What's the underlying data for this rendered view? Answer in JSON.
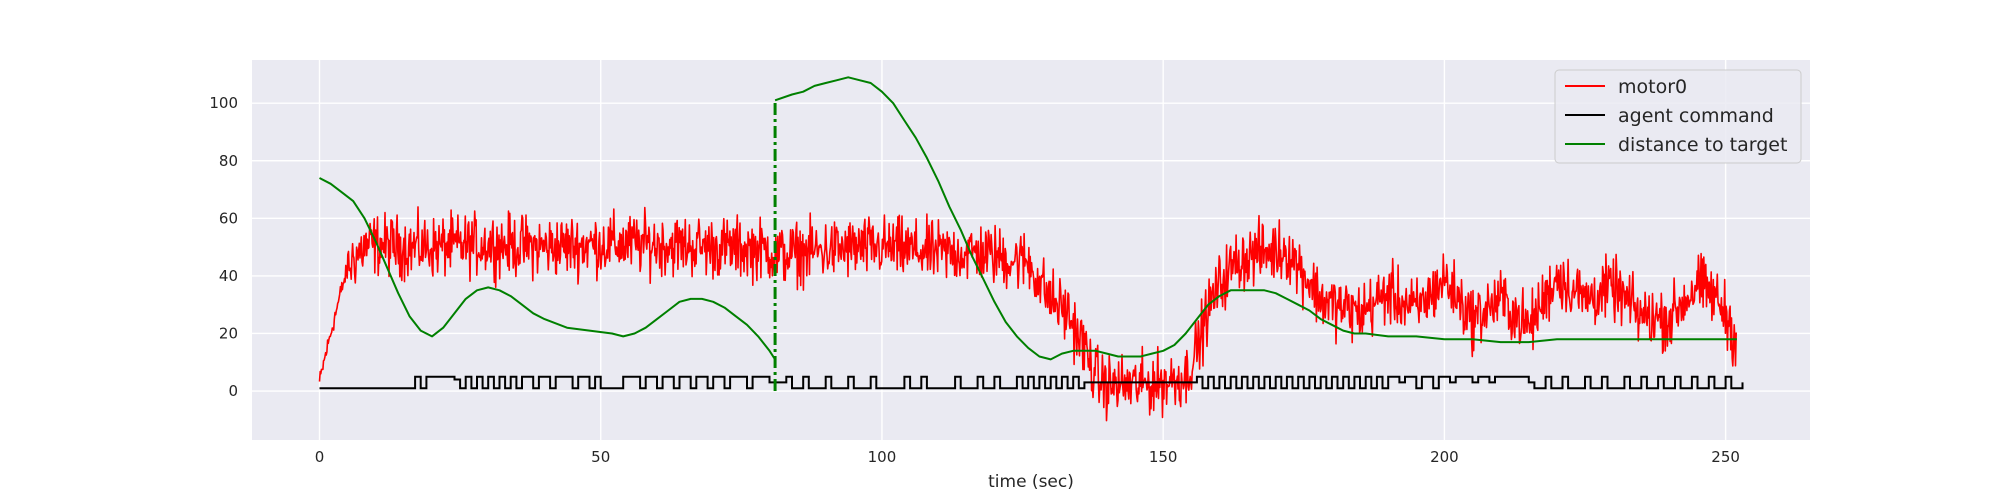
{
  "chart_data": {
    "type": "line",
    "title": "",
    "xlabel": "time (sec)",
    "ylabel": "",
    "xlim": [
      -12,
      265
    ],
    "ylim": [
      -17,
      115
    ],
    "xticks": [
      0,
      50,
      100,
      150,
      200,
      250
    ],
    "yticks": [
      0,
      20,
      40,
      60,
      80,
      100
    ],
    "grid": true,
    "legend_position": "top-right",
    "colors": {
      "background": "#eaeaf2",
      "grid": "#ffffff",
      "motor0": "#ff0000",
      "agent_command": "#000000",
      "distance": "#008000",
      "text": "#262626"
    },
    "vline": {
      "x": 81,
      "y_from": 0,
      "y_to": 101,
      "style": "dash-dot",
      "color": "#008000"
    },
    "series": [
      {
        "name": "motor0",
        "note_noisy": true,
        "x": [
          0,
          1,
          2,
          3,
          4,
          5,
          6,
          7,
          8,
          10,
          15,
          20,
          30,
          40,
          50,
          60,
          70,
          80,
          81,
          90,
          100,
          110,
          118,
          122,
          126,
          128,
          130,
          133,
          136,
          138,
          140,
          145,
          150,
          154,
          156,
          158,
          160,
          163,
          167,
          172,
          175,
          178,
          180,
          185,
          190,
          195,
          200,
          205,
          210,
          215,
          220,
          225,
          230,
          235,
          240,
          245,
          248,
          250,
          252
        ],
        "y": [
          3,
          12,
          20,
          28,
          36,
          42,
          46,
          48,
          50,
          51,
          50,
          50,
          51,
          50,
          51,
          51,
          50,
          49,
          47,
          49,
          50,
          48,
          48,
          46,
          45,
          38,
          32,
          27,
          15,
          5,
          2,
          2,
          3,
          5,
          15,
          28,
          37,
          45,
          48,
          49,
          41,
          32,
          30,
          27,
          34,
          28,
          39,
          25,
          32,
          22,
          40,
          32,
          36,
          26,
          25,
          37,
          33,
          27,
          17
        ]
      },
      {
        "name": "agent command",
        "x": [
          0,
          16,
          17,
          18,
          19,
          20,
          22,
          24,
          25,
          26,
          27,
          28,
          29,
          30,
          31,
          32,
          33,
          34,
          35,
          36,
          38,
          39,
          41,
          42,
          45,
          46,
          48,
          49,
          50,
          53,
          54,
          57,
          58,
          60,
          61,
          63,
          64,
          66,
          67,
          69,
          70,
          72,
          73,
          76,
          77,
          80,
          81,
          83,
          84,
          86,
          87,
          90,
          91,
          94,
          95,
          98,
          99,
          104,
          105,
          107,
          108,
          113,
          114,
          117,
          118,
          120,
          121,
          124,
          125,
          126,
          127,
          128,
          129,
          130,
          131,
          132,
          133,
          134,
          135,
          136,
          155,
          156,
          157,
          158,
          159,
          160,
          161,
          162,
          163,
          164,
          165,
          166,
          167,
          168,
          169,
          170,
          171,
          172,
          173,
          174,
          175,
          176,
          177,
          178,
          179,
          180,
          181,
          182,
          183,
          184,
          185,
          186,
          187,
          188,
          189,
          190,
          192,
          193,
          195,
          196,
          198,
          199,
          201,
          202,
          205,
          206,
          208,
          209,
          215,
          216,
          218,
          219,
          221,
          222,
          225,
          226,
          228,
          229,
          232,
          233,
          235,
          236,
          238,
          239,
          241,
          242,
          244,
          245,
          247,
          248,
          250,
          251,
          253
        ],
        "y": [
          1,
          1,
          5,
          1,
          5,
          5,
          5,
          4,
          1,
          5,
          1,
          5,
          1,
          5,
          1,
          5,
          1,
          5,
          1,
          5,
          1,
          5,
          1,
          5,
          1,
          5,
          1,
          5,
          1,
          1,
          5,
          1,
          5,
          1,
          5,
          1,
          5,
          1,
          5,
          1,
          5,
          1,
          5,
          1,
          5,
          3,
          3,
          5,
          1,
          5,
          1,
          5,
          1,
          5,
          1,
          5,
          1,
          5,
          1,
          5,
          1,
          5,
          1,
          5,
          1,
          5,
          1,
          5,
          1,
          5,
          1,
          5,
          1,
          5,
          1,
          5,
          1,
          5,
          1,
          3,
          3,
          5,
          1,
          5,
          1,
          5,
          1,
          5,
          1,
          5,
          1,
          5,
          1,
          5,
          1,
          5,
          1,
          5,
          1,
          5,
          1,
          5,
          1,
          5,
          1,
          5,
          1,
          5,
          1,
          5,
          1,
          5,
          1,
          5,
          1,
          5,
          3,
          5,
          1,
          5,
          1,
          5,
          3,
          5,
          3,
          5,
          3,
          5,
          3,
          1,
          5,
          1,
          5,
          1,
          5,
          1,
          5,
          1,
          5,
          1,
          5,
          1,
          5,
          1,
          5,
          1,
          5,
          1,
          5,
          1,
          5,
          1,
          3
        ]
      },
      {
        "name": "distance to target",
        "x": [
          0,
          2,
          4,
          6,
          8,
          10,
          12,
          14,
          16,
          18,
          20,
          22,
          24,
          26,
          28,
          30,
          32,
          34,
          36,
          38,
          40,
          44,
          48,
          52,
          54,
          56,
          58,
          60,
          62,
          64,
          66,
          68,
          70,
          72,
          74,
          76,
          78,
          80,
          81,
          81,
          84,
          86,
          88,
          90,
          92,
          94,
          96,
          98,
          100,
          102,
          104,
          106,
          108,
          110,
          112,
          114,
          116,
          118,
          120,
          122,
          124,
          126,
          128,
          130,
          132,
          134,
          136,
          138,
          140,
          142,
          144,
          146,
          148,
          150,
          152,
          154,
          156,
          158,
          160,
          162,
          164,
          166,
          168,
          170,
          172,
          174,
          176,
          178,
          180,
          182,
          184,
          186,
          190,
          195,
          200,
          205,
          210,
          215,
          220,
          225,
          230,
          235,
          240,
          245,
          250,
          252
        ],
        "y": [
          74,
          72,
          69,
          66,
          60,
          52,
          43,
          34,
          26,
          21,
          19,
          22,
          27,
          32,
          35,
          36,
          35,
          33,
          30,
          27,
          25,
          22,
          21,
          20,
          19,
          20,
          22,
          25,
          28,
          31,
          32,
          32,
          31,
          29,
          26,
          23,
          19,
          14,
          11,
          101,
          103,
          104,
          106,
          107,
          108,
          109,
          108,
          107,
          104,
          100,
          94,
          88,
          81,
          73,
          64,
          56,
          47,
          39,
          31,
          24,
          19,
          15,
          12,
          11,
          13,
          14,
          14,
          14,
          13,
          12,
          12,
          12,
          13,
          14,
          16,
          20,
          25,
          30,
          33,
          35,
          35,
          35,
          35,
          34,
          32,
          30,
          28,
          25,
          23,
          21,
          20,
          20,
          19,
          19,
          18,
          18,
          17,
          17,
          18,
          18,
          18,
          18,
          18,
          18,
          18,
          18
        ]
      }
    ]
  }
}
